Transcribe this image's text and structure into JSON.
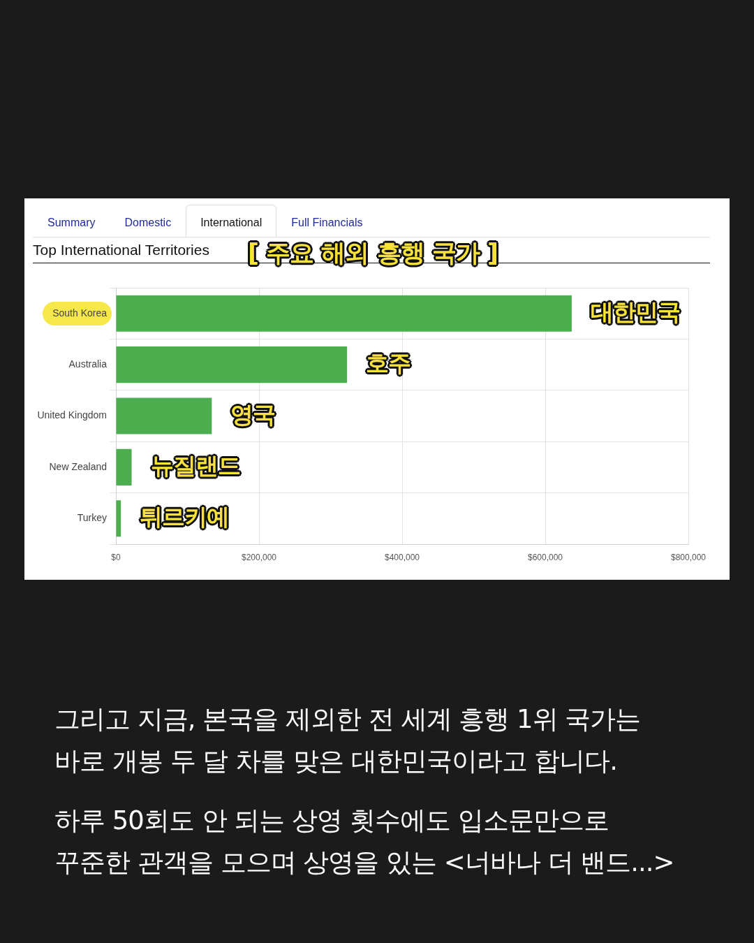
{
  "chart_data": {
    "type": "bar",
    "orientation": "horizontal",
    "title": "Top International Territories",
    "subtitle": "[ 주요 해외 흥행 국가 ]",
    "categories": [
      "South Korea",
      "Australia",
      "United Kingdom",
      "New Zealand",
      "Turkey"
    ],
    "values": [
      637000,
      323000,
      134000,
      22000,
      7000
    ],
    "color": "#4cae4f",
    "xlim": [
      0,
      800000
    ],
    "xticks": [
      {
        "value": 0,
        "label": "$0"
      },
      {
        "value": 200000,
        "label": "$200,000"
      },
      {
        "value": 400000,
        "label": "$400,000"
      },
      {
        "value": 600000,
        "label": "$600,000"
      },
      {
        "value": 800000,
        "label": "$800,000"
      }
    ],
    "grid": true,
    "annotations": [
      "Summary",
      "Domestic",
      "International",
      "Full Financials",
      {
        "text": "대한민국",
        "x": 637000,
        "y": "South Korea"
      },
      {
        "text": "호주",
        "x": 323000,
        "y": "Australia"
      },
      {
        "text": "영국",
        "x": 134000,
        "y": "United Kingdom"
      },
      {
        "text": "뉴질랜드",
        "x": 22000,
        "y": "New Zealand"
      },
      {
        "text": "튀르키예",
        "x": 7000,
        "y": "Turkey"
      },
      "그리고 지금, 본국을 제외한 전 세계 흥행 1위 국가는\n바로 개봉 두 달 차를 맞은 대한민국이라고 합니다.",
      "하루 50회도 안 되는 상영 횟수에도 입소문만으로\n꾸준한 관객을 모으며 상영을 있는 <너바나 더 밴드...>"
    ]
  }
}
